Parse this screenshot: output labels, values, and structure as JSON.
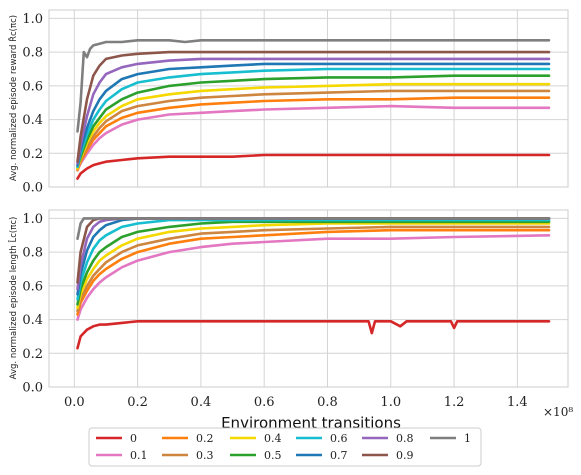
{
  "chart_data": [
    {
      "type": "line",
      "ylabel": "Avg. normalized episode reward $\\hat{R}_c(\\pi_c)$",
      "xlabel": "",
      "xlim": [
        -0.08,
        1.56
      ],
      "ylim": [
        0,
        1.05
      ],
      "xticks": [
        0.0,
        0.2,
        0.4,
        0.6,
        0.8,
        1.0,
        1.2,
        1.4
      ],
      "xticklabels": [
        "0.0",
        "0.2",
        "0.4",
        "0.6",
        "0.8",
        "1.0",
        "1.2",
        "1.4"
      ],
      "yticks": [
        0.0,
        0.2,
        0.4,
        0.6,
        0.8,
        1.0
      ],
      "yticklabels": [
        "0.0",
        "0.2",
        "0.4",
        "0.6",
        "0.8",
        "1.0"
      ],
      "grid": true,
      "series": [
        {
          "name": "0",
          "color": "#d62728",
          "x": [
            0.01,
            0.02,
            0.04,
            0.06,
            0.08,
            0.1,
            0.15,
            0.2,
            0.3,
            0.4,
            0.5,
            0.6,
            0.8,
            1.0,
            1.2,
            1.5
          ],
          "y": [
            0.05,
            0.08,
            0.11,
            0.13,
            0.14,
            0.15,
            0.16,
            0.17,
            0.18,
            0.18,
            0.18,
            0.19,
            0.19,
            0.19,
            0.19,
            0.19
          ]
        },
        {
          "name": "0.1",
          "color": "#e377c2",
          "x": [
            0.01,
            0.02,
            0.04,
            0.06,
            0.08,
            0.1,
            0.15,
            0.2,
            0.3,
            0.4,
            0.5,
            0.6,
            0.8,
            1.0,
            1.2,
            1.5
          ],
          "y": [
            0.1,
            0.14,
            0.2,
            0.25,
            0.29,
            0.32,
            0.37,
            0.4,
            0.43,
            0.44,
            0.45,
            0.46,
            0.47,
            0.48,
            0.47,
            0.47
          ]
        },
        {
          "name": "0.2",
          "color": "#ff7f0e",
          "x": [
            0.01,
            0.02,
            0.04,
            0.06,
            0.08,
            0.1,
            0.15,
            0.2,
            0.3,
            0.4,
            0.5,
            0.6,
            0.8,
            1.0,
            1.2,
            1.5
          ],
          "y": [
            0.1,
            0.15,
            0.22,
            0.28,
            0.32,
            0.36,
            0.41,
            0.44,
            0.47,
            0.49,
            0.5,
            0.51,
            0.52,
            0.52,
            0.53,
            0.53
          ]
        },
        {
          "name": "0.3",
          "color": "#cd853f",
          "x": [
            0.01,
            0.02,
            0.04,
            0.06,
            0.08,
            0.1,
            0.15,
            0.2,
            0.3,
            0.4,
            0.5,
            0.6,
            0.8,
            1.0,
            1.2,
            1.5
          ],
          "y": [
            0.11,
            0.16,
            0.24,
            0.3,
            0.35,
            0.39,
            0.45,
            0.48,
            0.51,
            0.53,
            0.54,
            0.55,
            0.56,
            0.57,
            0.57,
            0.57
          ]
        },
        {
          "name": "0.4",
          "color": "#f5d800",
          "x": [
            0.01,
            0.02,
            0.04,
            0.06,
            0.08,
            0.1,
            0.15,
            0.2,
            0.3,
            0.4,
            0.5,
            0.6,
            0.8,
            1.0,
            1.2,
            1.5
          ],
          "y": [
            0.11,
            0.17,
            0.26,
            0.33,
            0.38,
            0.42,
            0.48,
            0.52,
            0.55,
            0.57,
            0.58,
            0.59,
            0.6,
            0.61,
            0.61,
            0.61
          ]
        },
        {
          "name": "0.5",
          "color": "#2ca02c",
          "x": [
            0.01,
            0.02,
            0.04,
            0.06,
            0.08,
            0.1,
            0.15,
            0.2,
            0.3,
            0.4,
            0.5,
            0.6,
            0.8,
            1.0,
            1.2,
            1.5
          ],
          "y": [
            0.12,
            0.18,
            0.28,
            0.36,
            0.41,
            0.46,
            0.52,
            0.56,
            0.6,
            0.62,
            0.63,
            0.64,
            0.65,
            0.65,
            0.66,
            0.66
          ]
        },
        {
          "name": "0.6",
          "color": "#17becf",
          "x": [
            0.01,
            0.02,
            0.04,
            0.06,
            0.08,
            0.1,
            0.15,
            0.2,
            0.3,
            0.4,
            0.5,
            0.6,
            0.8,
            1.0,
            1.2,
            1.5
          ],
          "y": [
            0.12,
            0.2,
            0.31,
            0.4,
            0.46,
            0.51,
            0.58,
            0.62,
            0.65,
            0.67,
            0.68,
            0.69,
            0.7,
            0.7,
            0.7,
            0.7
          ]
        },
        {
          "name": "0.7",
          "color": "#1f77b4",
          "x": [
            0.01,
            0.02,
            0.04,
            0.06,
            0.08,
            0.1,
            0.15,
            0.2,
            0.3,
            0.4,
            0.5,
            0.6,
            0.8,
            1.0,
            1.2,
            1.5
          ],
          "y": [
            0.13,
            0.22,
            0.35,
            0.45,
            0.52,
            0.57,
            0.64,
            0.67,
            0.7,
            0.71,
            0.72,
            0.73,
            0.73,
            0.73,
            0.73,
            0.73
          ]
        },
        {
          "name": "0.8",
          "color": "#9467bd",
          "x": [
            0.01,
            0.02,
            0.04,
            0.06,
            0.08,
            0.1,
            0.15,
            0.2,
            0.3,
            0.4,
            0.5,
            0.6,
            0.8,
            1.0,
            1.2,
            1.5
          ],
          "y": [
            0.14,
            0.25,
            0.42,
            0.55,
            0.62,
            0.67,
            0.71,
            0.73,
            0.75,
            0.76,
            0.76,
            0.76,
            0.76,
            0.76,
            0.76,
            0.76
          ]
        },
        {
          "name": "0.9",
          "color": "#8c564b",
          "x": [
            0.01,
            0.02,
            0.04,
            0.06,
            0.08,
            0.1,
            0.15,
            0.2,
            0.3,
            0.4,
            0.5,
            0.6,
            0.8,
            1.0,
            1.2,
            1.5
          ],
          "y": [
            0.15,
            0.3,
            0.52,
            0.66,
            0.72,
            0.76,
            0.78,
            0.79,
            0.8,
            0.8,
            0.8,
            0.8,
            0.8,
            0.8,
            0.8,
            0.8
          ]
        },
        {
          "name": "1",
          "color": "#7f7f7f",
          "x": [
            0.01,
            0.02,
            0.03,
            0.04,
            0.05,
            0.06,
            0.08,
            0.1,
            0.15,
            0.2,
            0.3,
            0.35,
            0.4,
            0.6,
            1.0,
            1.5
          ],
          "y": [
            0.33,
            0.5,
            0.8,
            0.77,
            0.82,
            0.84,
            0.85,
            0.86,
            0.86,
            0.87,
            0.87,
            0.86,
            0.87,
            0.87,
            0.87,
            0.87
          ]
        }
      ]
    },
    {
      "type": "line",
      "ylabel": "Avg. normalized episode length $\\hat{L}_c(\\pi_c)$",
      "xlabel": "Environment transitions",
      "x_scale_label": "×10⁸",
      "xlim": [
        -0.08,
        1.56
      ],
      "ylim": [
        0,
        1.05
      ],
      "xticks": [
        0.0,
        0.2,
        0.4,
        0.6,
        0.8,
        1.0,
        1.2,
        1.4
      ],
      "xticklabels": [
        "0.0",
        "0.2",
        "0.4",
        "0.6",
        "0.8",
        "1.0",
        "1.2",
        "1.4"
      ],
      "yticks": [
        0.0,
        0.2,
        0.4,
        0.6,
        0.8,
        1.0
      ],
      "yticklabels": [
        "0.0",
        "0.2",
        "0.4",
        "0.6",
        "0.8",
        "1.0"
      ],
      "grid": true,
      "series": [
        {
          "name": "0",
          "color": "#d62728",
          "x": [
            0.01,
            0.02,
            0.04,
            0.06,
            0.08,
            0.1,
            0.15,
            0.2,
            0.3,
            0.4,
            0.5,
            0.6,
            0.8,
            0.93,
            0.94,
            0.95,
            1.0,
            1.03,
            1.05,
            1.1,
            1.19,
            1.2,
            1.21,
            1.3,
            1.5
          ],
          "y": [
            0.23,
            0.3,
            0.34,
            0.36,
            0.37,
            0.37,
            0.38,
            0.39,
            0.39,
            0.39,
            0.39,
            0.39,
            0.39,
            0.39,
            0.32,
            0.39,
            0.39,
            0.36,
            0.39,
            0.39,
            0.39,
            0.35,
            0.39,
            0.39,
            0.39
          ]
        },
        {
          "name": "0.1",
          "color": "#e377c2",
          "x": [
            0.01,
            0.02,
            0.04,
            0.06,
            0.08,
            0.1,
            0.15,
            0.2,
            0.3,
            0.4,
            0.5,
            0.6,
            0.8,
            1.0,
            1.2,
            1.5
          ],
          "y": [
            0.4,
            0.46,
            0.53,
            0.58,
            0.62,
            0.65,
            0.71,
            0.75,
            0.8,
            0.83,
            0.85,
            0.86,
            0.88,
            0.88,
            0.89,
            0.9
          ]
        },
        {
          "name": "0.2",
          "color": "#ff7f0e",
          "x": [
            0.01,
            0.02,
            0.04,
            0.06,
            0.08,
            0.1,
            0.15,
            0.2,
            0.3,
            0.4,
            0.5,
            0.6,
            0.8,
            1.0,
            1.2,
            1.5
          ],
          "y": [
            0.43,
            0.5,
            0.57,
            0.63,
            0.67,
            0.7,
            0.76,
            0.8,
            0.85,
            0.88,
            0.89,
            0.9,
            0.92,
            0.93,
            0.93,
            0.93
          ]
        },
        {
          "name": "0.3",
          "color": "#cd853f",
          "x": [
            0.01,
            0.02,
            0.04,
            0.06,
            0.08,
            0.1,
            0.15,
            0.2,
            0.3,
            0.4,
            0.5,
            0.6,
            0.8,
            1.0,
            1.2,
            1.5
          ],
          "y": [
            0.45,
            0.52,
            0.6,
            0.66,
            0.7,
            0.74,
            0.8,
            0.84,
            0.88,
            0.91,
            0.92,
            0.93,
            0.94,
            0.95,
            0.95,
            0.95
          ]
        },
        {
          "name": "0.4",
          "color": "#f5d800",
          "x": [
            0.01,
            0.02,
            0.04,
            0.06,
            0.08,
            0.1,
            0.15,
            0.2,
            0.3,
            0.4,
            0.5,
            0.6,
            0.8,
            1.0,
            1.2,
            1.5
          ],
          "y": [
            0.47,
            0.55,
            0.64,
            0.7,
            0.75,
            0.78,
            0.84,
            0.88,
            0.92,
            0.94,
            0.95,
            0.96,
            0.97,
            0.97,
            0.97,
            0.97
          ]
        },
        {
          "name": "0.5",
          "color": "#2ca02c",
          "x": [
            0.01,
            0.02,
            0.04,
            0.06,
            0.08,
            0.1,
            0.15,
            0.2,
            0.3,
            0.4,
            0.5,
            0.6,
            0.8,
            1.0,
            1.2,
            1.5
          ],
          "y": [
            0.49,
            0.58,
            0.68,
            0.75,
            0.8,
            0.83,
            0.89,
            0.92,
            0.95,
            0.97,
            0.98,
            0.98,
            0.98,
            0.98,
            0.98,
            0.98
          ]
        },
        {
          "name": "0.6",
          "color": "#17becf",
          "x": [
            0.01,
            0.02,
            0.04,
            0.06,
            0.08,
            0.1,
            0.15,
            0.2,
            0.3,
            0.4,
            0.5,
            0.6,
            0.8,
            1.0,
            1.2,
            1.5
          ],
          "y": [
            0.52,
            0.62,
            0.74,
            0.82,
            0.87,
            0.9,
            0.95,
            0.97,
            0.99,
            0.99,
            0.99,
            0.99,
            0.99,
            0.99,
            0.99,
            0.99
          ]
        },
        {
          "name": "0.7",
          "color": "#1f77b4",
          "x": [
            0.01,
            0.02,
            0.04,
            0.06,
            0.08,
            0.1,
            0.15,
            0.2,
            0.3,
            0.4,
            0.5,
            0.6,
            0.8,
            1.0,
            1.2,
            1.5
          ],
          "y": [
            0.55,
            0.67,
            0.81,
            0.89,
            0.93,
            0.96,
            0.99,
            1.0,
            1.0,
            1.0,
            1.0,
            1.0,
            1.0,
            1.0,
            1.0,
            1.0
          ]
        },
        {
          "name": "0.8",
          "color": "#9467bd",
          "x": [
            0.01,
            0.02,
            0.04,
            0.06,
            0.08,
            0.1,
            0.15,
            0.2,
            0.3,
            0.4,
            0.5,
            0.6,
            0.8,
            1.0,
            1.2,
            1.5
          ],
          "y": [
            0.58,
            0.72,
            0.88,
            0.95,
            0.98,
            0.99,
            1.0,
            1.0,
            1.0,
            1.0,
            1.0,
            1.0,
            1.0,
            1.0,
            1.0,
            1.0
          ]
        },
        {
          "name": "0.9",
          "color": "#8c564b",
          "x": [
            0.01,
            0.02,
            0.04,
            0.06,
            0.08,
            0.1,
            0.15,
            0.2,
            0.3,
            0.4,
            0.5,
            0.6,
            0.8,
            1.0,
            1.2,
            1.5
          ],
          "y": [
            0.62,
            0.8,
            0.95,
            0.99,
            1.0,
            1.0,
            1.0,
            1.0,
            1.0,
            1.0,
            1.0,
            1.0,
            1.0,
            1.0,
            1.0,
            1.0
          ]
        },
        {
          "name": "1",
          "color": "#7f7f7f",
          "x": [
            0.01,
            0.02,
            0.03,
            0.04,
            0.06,
            0.1,
            0.2,
            0.4,
            0.6,
            0.8,
            1.0,
            1.2,
            1.5
          ],
          "y": [
            0.88,
            0.97,
            1.0,
            1.0,
            1.0,
            1.0,
            1.0,
            1.0,
            1.0,
            1.0,
            1.0,
            1.0,
            1.0
          ]
        }
      ]
    }
  ],
  "legend": {
    "placement": "bottom-center",
    "entries": [
      "0",
      "0.1",
      "0.2",
      "0.3",
      "0.4",
      "0.5",
      "0.6",
      "0.7",
      "0.8",
      "0.9",
      "1"
    ]
  }
}
